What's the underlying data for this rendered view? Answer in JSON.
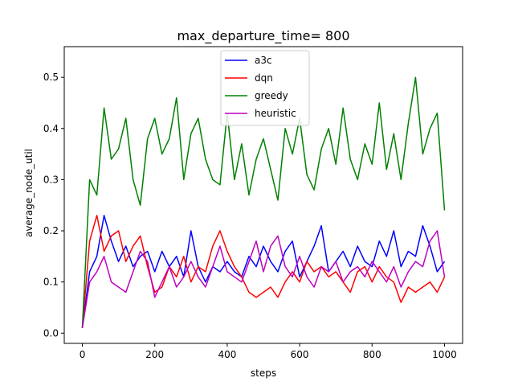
{
  "chart_data": {
    "type": "line",
    "title": "max_departure_time= 800",
    "xlabel": "steps",
    "ylabel": "average_node_util",
    "xlim": [
      -50,
      1050
    ],
    "ylim": [
      -0.02,
      0.56
    ],
    "xticks": [
      0,
      200,
      400,
      600,
      800,
      1000
    ],
    "yticks": [
      0.0,
      0.1,
      0.2,
      0.3,
      0.4,
      0.5
    ],
    "xtick_labels": [
      "0",
      "200",
      "400",
      "600",
      "800",
      "1000"
    ],
    "ytick_labels": [
      "0.0",
      "0.1",
      "0.2",
      "0.3",
      "0.4",
      "0.5"
    ],
    "grid": false,
    "legend_position": "top-center",
    "x": [
      0,
      20,
      40,
      60,
      80,
      100,
      120,
      140,
      160,
      180,
      200,
      220,
      240,
      260,
      280,
      300,
      320,
      340,
      360,
      380,
      400,
      420,
      440,
      460,
      480,
      500,
      520,
      540,
      560,
      580,
      600,
      620,
      640,
      660,
      680,
      700,
      720,
      740,
      760,
      780,
      800,
      820,
      840,
      860,
      880,
      900,
      920,
      940,
      960,
      980,
      1000
    ],
    "series": [
      {
        "name": "a3c",
        "color": "#0000ff",
        "values": [
          0.01,
          0.12,
          0.15,
          0.23,
          0.18,
          0.14,
          0.17,
          0.13,
          0.15,
          0.16,
          0.12,
          0.16,
          0.13,
          0.15,
          0.11,
          0.2,
          0.13,
          0.1,
          0.13,
          0.12,
          0.14,
          0.12,
          0.11,
          0.15,
          0.13,
          0.17,
          0.14,
          0.12,
          0.16,
          0.18,
          0.11,
          0.14,
          0.17,
          0.21,
          0.12,
          0.14,
          0.16,
          0.13,
          0.17,
          0.14,
          0.13,
          0.18,
          0.15,
          0.2,
          0.13,
          0.16,
          0.15,
          0.21,
          0.17,
          0.12,
          0.14
        ]
      },
      {
        "name": "dqn",
        "color": "#ff0000",
        "values": [
          0.01,
          0.18,
          0.23,
          0.16,
          0.19,
          0.2,
          0.14,
          0.17,
          0.19,
          0.13,
          0.08,
          0.09,
          0.13,
          0.11,
          0.15,
          0.1,
          0.13,
          0.12,
          0.17,
          0.2,
          0.16,
          0.13,
          0.11,
          0.08,
          0.07,
          0.08,
          0.09,
          0.07,
          0.1,
          0.12,
          0.1,
          0.14,
          0.12,
          0.13,
          0.11,
          0.12,
          0.1,
          0.08,
          0.12,
          0.13,
          0.1,
          0.13,
          0.11,
          0.1,
          0.06,
          0.09,
          0.08,
          0.09,
          0.1,
          0.08,
          0.11
        ]
      },
      {
        "name": "greedy",
        "color": "#008000",
        "values": [
          0.01,
          0.3,
          0.27,
          0.44,
          0.34,
          0.36,
          0.42,
          0.3,
          0.25,
          0.38,
          0.42,
          0.35,
          0.38,
          0.46,
          0.3,
          0.39,
          0.42,
          0.34,
          0.3,
          0.29,
          0.43,
          0.3,
          0.37,
          0.27,
          0.34,
          0.38,
          0.32,
          0.26,
          0.4,
          0.35,
          0.42,
          0.31,
          0.28,
          0.36,
          0.4,
          0.33,
          0.44,
          0.34,
          0.3,
          0.37,
          0.33,
          0.45,
          0.32,
          0.39,
          0.3,
          0.41,
          0.5,
          0.35,
          0.4,
          0.43,
          0.24
        ]
      },
      {
        "name": "heuristic",
        "color": "#bf00bf",
        "values": [
          0.01,
          0.1,
          0.12,
          0.15,
          0.1,
          0.09,
          0.08,
          0.12,
          0.16,
          0.14,
          0.07,
          0.1,
          0.13,
          0.09,
          0.11,
          0.14,
          0.11,
          0.09,
          0.13,
          0.17,
          0.12,
          0.11,
          0.1,
          0.14,
          0.18,
          0.12,
          0.17,
          0.19,
          0.13,
          0.11,
          0.15,
          0.11,
          0.09,
          0.13,
          0.12,
          0.14,
          0.1,
          0.12,
          0.13,
          0.11,
          0.14,
          0.12,
          0.1,
          0.13,
          0.09,
          0.12,
          0.14,
          0.13,
          0.18,
          0.2,
          0.11
        ]
      }
    ]
  }
}
